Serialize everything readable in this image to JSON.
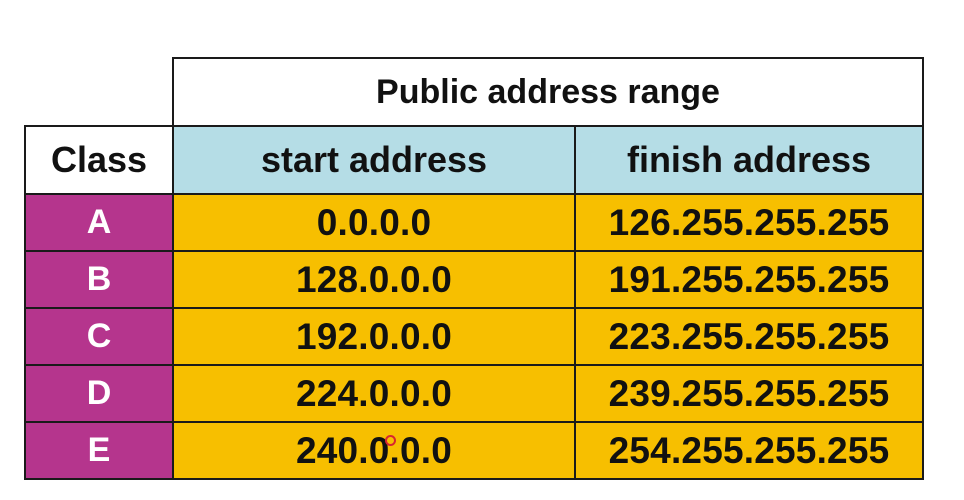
{
  "table": {
    "range_title": "Public address range",
    "headers": {
      "class": "Class",
      "start": "start address",
      "finish": "finish address"
    },
    "rows": [
      {
        "class": "A",
        "start": "0.0.0.0",
        "finish": "126.255.255.255"
      },
      {
        "class": "B",
        "start": "128.0.0.0",
        "finish": "191.255.255.255"
      },
      {
        "class": "C",
        "start": "192.0.0.0",
        "finish": "223.255.255.255"
      },
      {
        "class": "D",
        "start": "224.0.0.0",
        "finish": "239.255.255.255"
      },
      {
        "class": "E",
        "start": "240.0.0.0",
        "finish": "254.255.255.255"
      }
    ]
  },
  "colors": {
    "class_cell": "#b5358d",
    "address_cell": "#f7bf00",
    "address_header": "#b5dde6"
  }
}
